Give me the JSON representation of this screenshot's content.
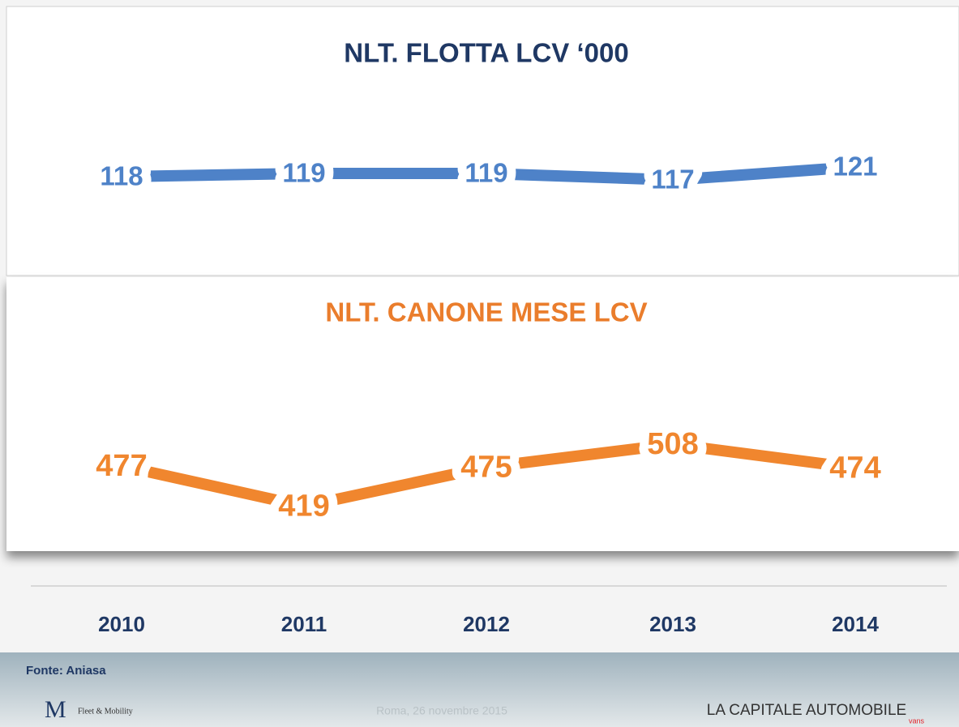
{
  "chart_data": [
    {
      "type": "line",
      "title": "NLT. FLOTTA LCV ‘000",
      "title_color": "#1f3864",
      "categories": [
        "2010",
        "2011",
        "2012",
        "2013",
        "2014"
      ],
      "series": [
        {
          "name": "Flotta",
          "color": "#4e82c8",
          "values": [
            118,
            119,
            119,
            117,
            121
          ]
        }
      ],
      "ylim": [
        100,
        140
      ]
    },
    {
      "type": "line",
      "title": "NLT. CANONE MESE LCV",
      "title_color": "#ea7d2c",
      "categories": [
        "2010",
        "2011",
        "2012",
        "2013",
        "2014"
      ],
      "series": [
        {
          "name": "Canone",
          "color": "#f0862e",
          "values": [
            477,
            419,
            475,
            508,
            474
          ]
        }
      ],
      "ylim": [
        300,
        600
      ]
    }
  ],
  "footer": {
    "source": "Fonte: Aniasa",
    "logo": "Fleet & Mobility",
    "date": "Roma, 26 novembre 2015",
    "brand": "LA CAPITALE AUTOMOBILE",
    "brand_sub": "vans"
  }
}
